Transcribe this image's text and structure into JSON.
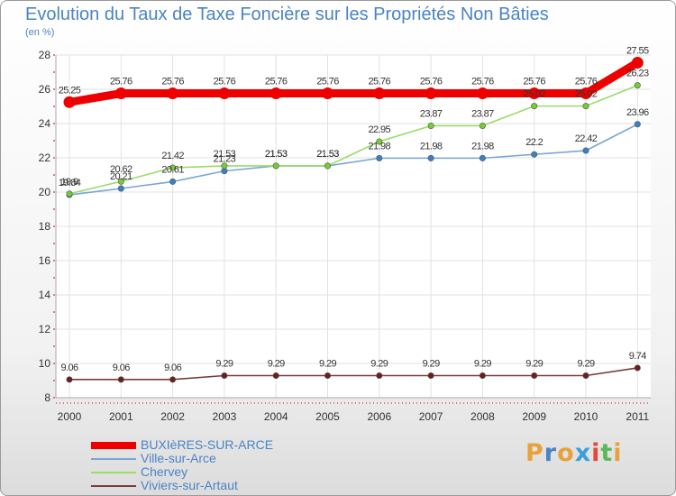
{
  "title": "Evolution du Taux de Taxe Foncière sur les Propriétés Non Bâties",
  "unit": "(en %)",
  "logo": {
    "letters": [
      "P",
      "r",
      "o",
      "x",
      "i",
      "t",
      "i"
    ],
    "colors": [
      "#e8a23b",
      "#4a84c4",
      "#e8a23b",
      "#3aa0d8",
      "#e04a3a",
      "#5cb85c",
      "#e8a23b"
    ]
  },
  "chart_data": {
    "type": "line",
    "title": "Evolution du Taux de Taxe Foncière sur les Propriétés Non Bâties",
    "ylabel": "(en %)",
    "ylim": [
      8,
      28
    ],
    "yticks": [
      8,
      10,
      12,
      14,
      16,
      18,
      20,
      22,
      24,
      26,
      28
    ],
    "x": [
      "2000",
      "2001",
      "2002",
      "2003",
      "2004",
      "2005",
      "2006",
      "2007",
      "2008",
      "2009",
      "2010",
      "2011"
    ],
    "grid": true,
    "series": [
      {
        "name": "BUXIèRES-SUR-ARCE",
        "color": "#ee0000",
        "marker": "#ee0000",
        "values": [
          25.25,
          25.76,
          25.76,
          25.76,
          25.76,
          25.76,
          25.76,
          25.76,
          25.76,
          25.76,
          25.76,
          27.55
        ],
        "labels": [
          "25.25",
          "25.76",
          "25.76",
          "25.76",
          "25.76",
          "25.76",
          "25.76",
          "25.76",
          "25.76",
          "25.76",
          "25.76",
          "27.55"
        ]
      },
      {
        "name": "Ville-sur-Arce",
        "color": "#7aa6d6",
        "marker": "#3b7fc4",
        "values": [
          19.84,
          20.21,
          20.61,
          21.23,
          21.53,
          21.53,
          21.98,
          21.98,
          21.98,
          22.2,
          22.42,
          23.96
        ],
        "labels": [
          "19.84",
          "20.21",
          "20.61",
          "21.23",
          "21.53",
          "21.53",
          "21.98",
          "21.98",
          "21.98",
          "22.2",
          "22.42",
          "23.96"
        ]
      },
      {
        "name": "Chervey",
        "color": "#99dd66",
        "marker": "#77cc33",
        "values": [
          19.9,
          20.62,
          21.42,
          21.53,
          21.53,
          21.53,
          22.95,
          23.87,
          23.87,
          25.02,
          25.02,
          26.23
        ],
        "labels": [
          "19.9",
          "20.62",
          "21.42",
          "21.53",
          "21.53",
          "21.53",
          "22.95",
          "23.87",
          "23.87",
          "25.02",
          "25.02",
          "26.23"
        ]
      },
      {
        "name": "Viviers-sur-Artaut",
        "color": "#7a3a3a",
        "marker": "#6b1e1e",
        "values": [
          9.06,
          9.06,
          9.06,
          9.29,
          9.29,
          9.29,
          9.29,
          9.29,
          9.29,
          9.29,
          9.29,
          9.74
        ],
        "labels": [
          "9.06",
          "9.06",
          "9.06",
          "9.29",
          "9.29",
          "9.29",
          "9.29",
          "9.29",
          "9.29",
          "9.29",
          "9.29",
          "9.74"
        ]
      }
    ]
  }
}
